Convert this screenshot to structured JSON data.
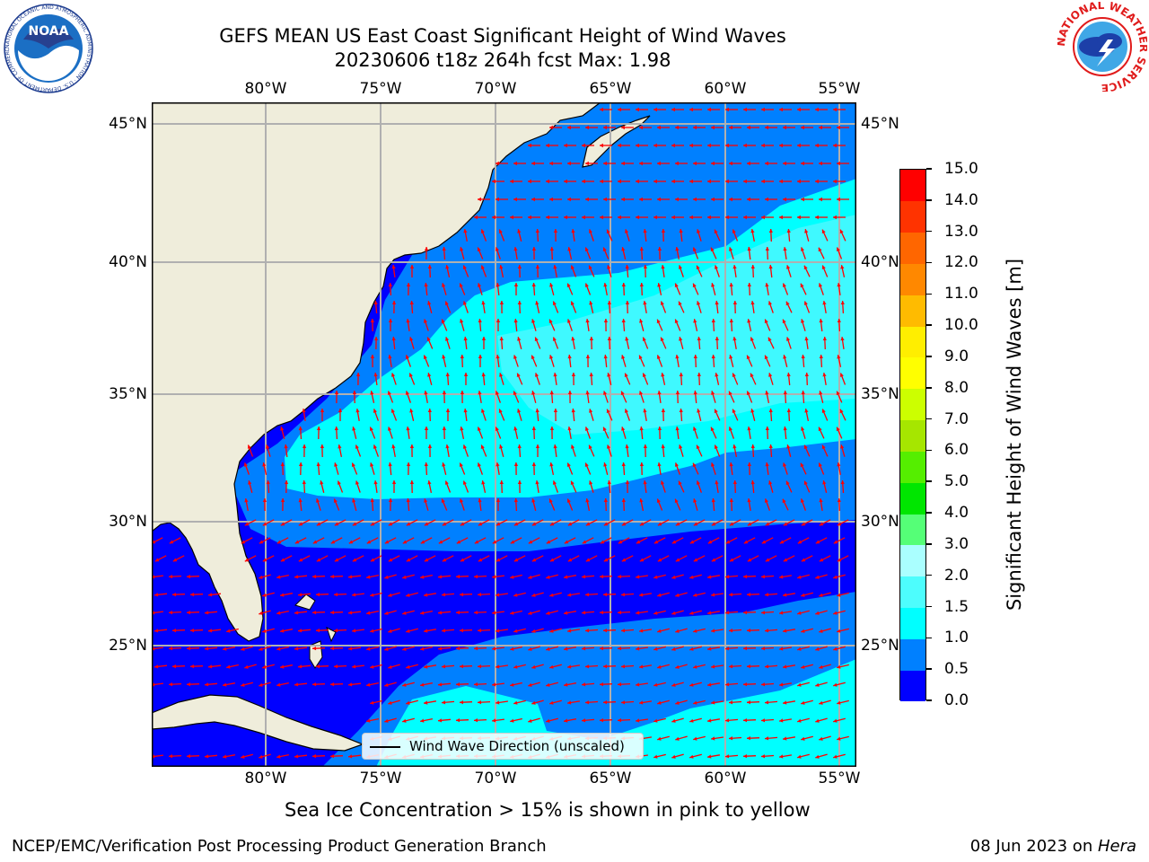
{
  "title_line1": "GEFS MEAN US East Coast Significant Height of Wind Waves",
  "title_line2": "20230606 t18z 264h fcst   Max: 1.98",
  "map": {
    "lon_ticks": [
      "80°W",
      "75°W",
      "70°W",
      "65°W",
      "60°W",
      "55°W"
    ],
    "lat_ticks": [
      "45°N",
      "40°N",
      "35°N",
      "30°N",
      "25°N"
    ],
    "gridlines": true,
    "colors": {
      "land": "#efeddb",
      "ocean_0_0_5": "#0000ff",
      "ocean_0_5_1_0": "#0080ff",
      "ocean_1_0_1_5": "#00ffff",
      "ocean_1_5_2_0": "#3ff9ff",
      "arrows": "#ff0000",
      "grid": "#b0b0b0"
    }
  },
  "colorbar": {
    "label": "Significant Height of Wind Waves [m]",
    "tick_labels": [
      "0.0",
      "0.5",
      "1.0",
      "1.5",
      "2.0",
      "3.0",
      "4.0",
      "5.0",
      "6.0",
      "7.0",
      "8.0",
      "9.0",
      "10.0",
      "11.0",
      "12.0",
      "13.0",
      "14.0",
      "15.0"
    ],
    "colors": [
      "#0000ff",
      "#0080ff",
      "#00ffff",
      "#4dfdfd",
      "#aaffff",
      "#55ff77",
      "#00e600",
      "#55ee00",
      "#a6e600",
      "#ccff00",
      "#ffff00",
      "#ffee00",
      "#ffbb00",
      "#ff8800",
      "#ff6600",
      "#ff3300",
      "#ff0000"
    ]
  },
  "legend": {
    "label": "Wind Wave Direction (unscaled)"
  },
  "note": "Sea Ice Concentration > 15% is shown in pink to yellow",
  "footer": {
    "left": "NCEP/EMC/Verification Post Processing Product Generation Branch",
    "date": "08 Jun 2023 on ",
    "host": "Hera"
  },
  "logos": {
    "noaa_text": "NOAA",
    "noaa_ring": "NATIONAL OCEANIC AND ATMOSPHERIC ADMINISTRATION · U.S. DEPARTMENT OF COMMERCE",
    "nws_ring": "NATIONAL WEATHER SERVICE"
  }
}
